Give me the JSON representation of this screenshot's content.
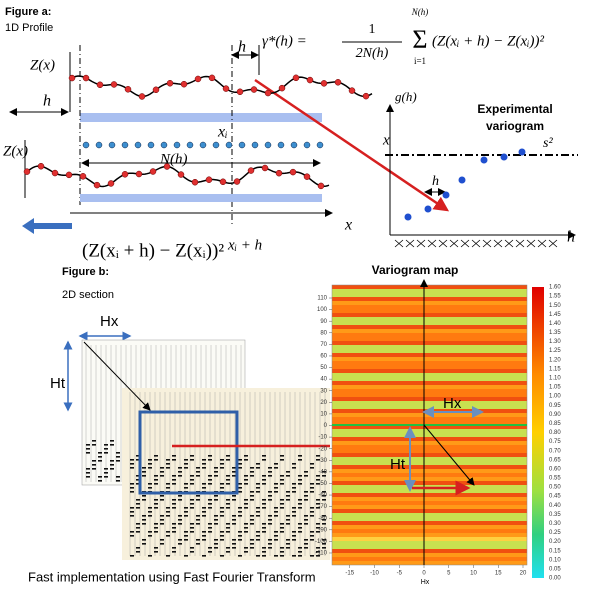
{
  "figure_a": {
    "label": "Figure a:",
    "subtitle": "1D Profile",
    "z_label_top": "Z(x)",
    "z_label_bottom": "Z(x)",
    "h_left": "h",
    "h_top": "h",
    "xi": "xᵢ",
    "nh": "N(h)",
    "xi_h": "xᵢ + h",
    "x_bottom": "x",
    "x_top": "x",
    "squared_diff": "(Z(xᵢ + h) − Z(xᵢ))²",
    "formula": {
      "lhs": "γ*(h) =",
      "numerator": "1",
      "denominator": "2N(h)",
      "sum_top": "N(h)",
      "sum_sign": "Σ",
      "sum_bottom": "i=1",
      "term": "(Z(xᵢ + h) − Z(xᵢ))²"
    },
    "variogram": {
      "y_label": "g(h)",
      "title_line1": "Experimental",
      "title_line2": "variogram",
      "sill": "s²",
      "h": "h",
      "h_axis": "h"
    }
  },
  "figure_b": {
    "label": "Figure b:",
    "subtitle": "2D section",
    "hx": "Hx",
    "ht": "Ht"
  },
  "variogram_map": {
    "title": "Variogram map",
    "yticks": [
      110,
      100,
      90,
      80,
      70,
      60,
      50,
      40,
      30,
      20,
      10,
      0,
      -10,
      -20,
      -30,
      -40,
      -50,
      -60,
      -70,
      -80,
      -90,
      -100,
      -110
    ],
    "xticks": [
      -15,
      -10,
      -5,
      0,
      5,
      10,
      15,
      20
    ],
    "x_label": "Hx",
    "hx": "Hx",
    "ht": "Ht",
    "colorbar_ticks": [
      "1.60",
      "1.55",
      "1.50",
      "1.45",
      "1.40",
      "1.35",
      "1.30",
      "1.25",
      "1.20",
      "1.15",
      "1.10",
      "1.05",
      "1.00",
      "0.95",
      "0.90",
      "0.85",
      "0.80",
      "0.75",
      "0.70",
      "0.65",
      "0.60",
      "0.55",
      "0.50",
      "0.45",
      "0.40",
      "0.35",
      "0.30",
      "0.25",
      "0.20",
      "0.15",
      "0.10",
      "0.05",
      "0.00"
    ]
  },
  "caption": "Fast implementation using Fast Fourier Transform"
}
